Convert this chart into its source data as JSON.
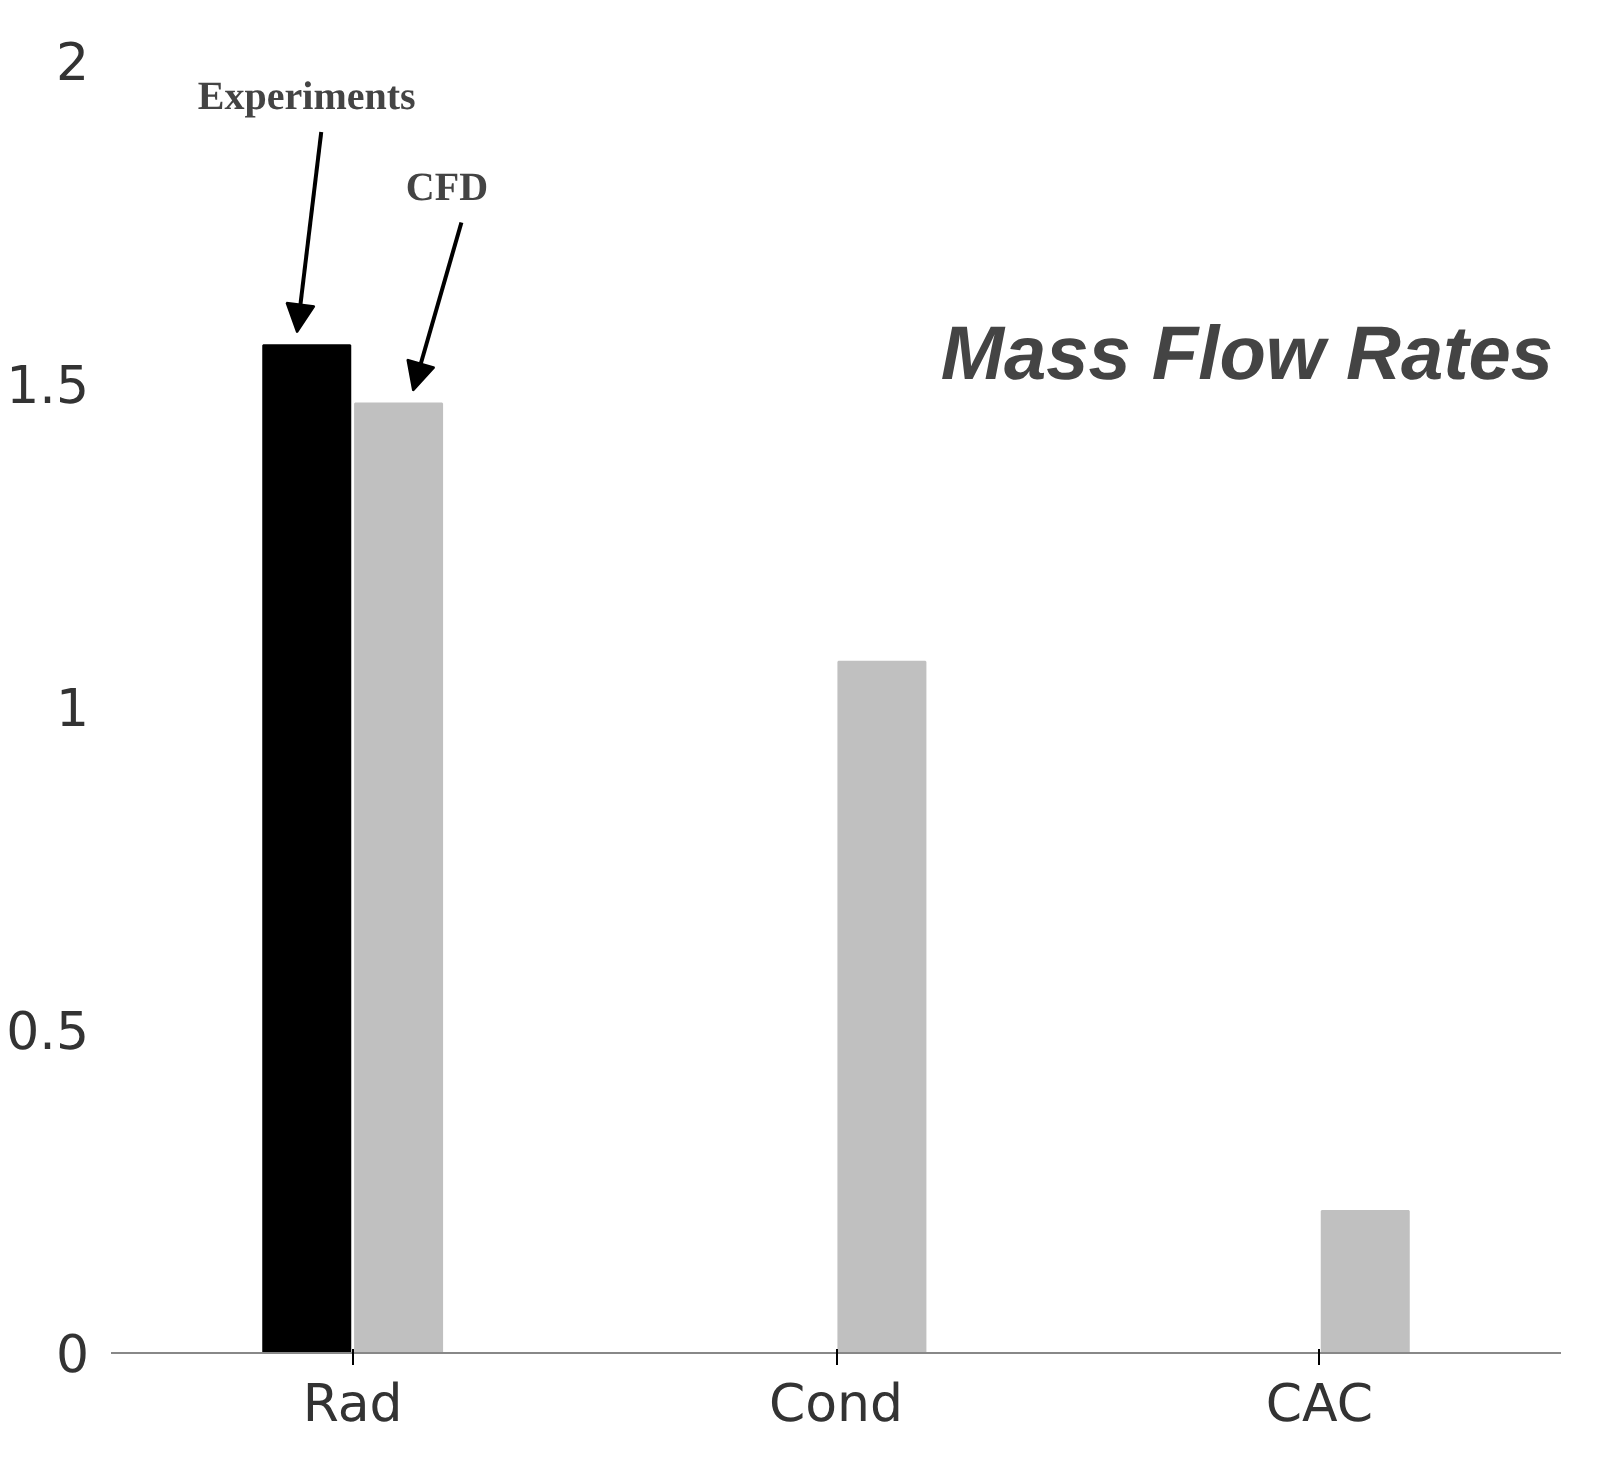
{
  "chart_data": {
    "type": "bar",
    "title": "Mass Flow Rates",
    "categories": [
      "Rad",
      "Cond",
      "CAC"
    ],
    "series": [
      {
        "name": "Experiments",
        "color": "#000000",
        "values": [
          1.56,
          null,
          null
        ]
      },
      {
        "name": "CFD",
        "color": "#c0c0c0",
        "values": [
          1.47,
          1.07,
          0.22
        ]
      }
    ],
    "ylim": [
      0,
      2
    ],
    "yticks": [
      0,
      {
        "value": 0.5,
        "label": "0.5"
      },
      1,
      {
        "value": 1.5,
        "label": "1.5"
      },
      2
    ],
    "grid": false
  }
}
